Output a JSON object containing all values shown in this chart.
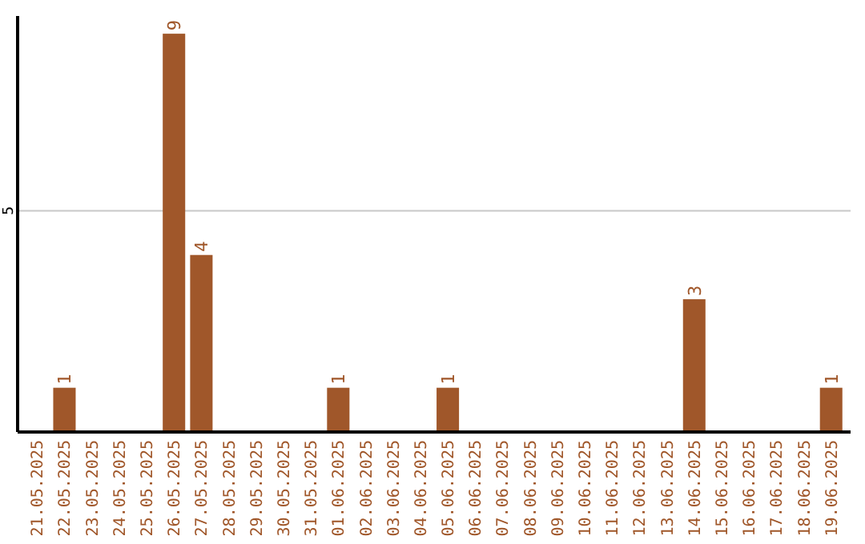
{
  "chart_data": {
    "type": "bar",
    "categories": [
      "21.05.2025",
      "22.05.2025",
      "23.05.2025",
      "24.05.2025",
      "25.05.2025",
      "26.05.2025",
      "27.05.2025",
      "28.05.2025",
      "29.05.2025",
      "30.05.2025",
      "31.05.2025",
      "01.06.2025",
      "02.06.2025",
      "03.06.2025",
      "04.06.2025",
      "05.06.2025",
      "06.06.2025",
      "07.06.2025",
      "08.06.2025",
      "09.06.2025",
      "10.06.2025",
      "11.06.2025",
      "12.06.2025",
      "13.06.2025",
      "14.06.2025",
      "15.06.2025",
      "16.06.2025",
      "17.06.2025",
      "18.06.2025",
      "19.06.2025"
    ],
    "values": [
      0,
      1,
      0,
      0,
      0,
      9,
      4,
      0,
      0,
      0,
      0,
      1,
      0,
      0,
      0,
      1,
      0,
      0,
      0,
      0,
      0,
      0,
      0,
      0,
      3,
      0,
      0,
      0,
      0,
      1
    ],
    "value_labels": [
      null,
      "1",
      null,
      null,
      null,
      "9",
      "4",
      null,
      null,
      null,
      null,
      "1",
      null,
      null,
      null,
      "1",
      null,
      null,
      null,
      null,
      null,
      null,
      null,
      null,
      "3",
      null,
      null,
      null,
      null,
      "1"
    ],
    "color": "#a0572a",
    "ylim": [
      0,
      9.4
    ],
    "yticks": [
      5
    ],
    "grid": "y"
  }
}
